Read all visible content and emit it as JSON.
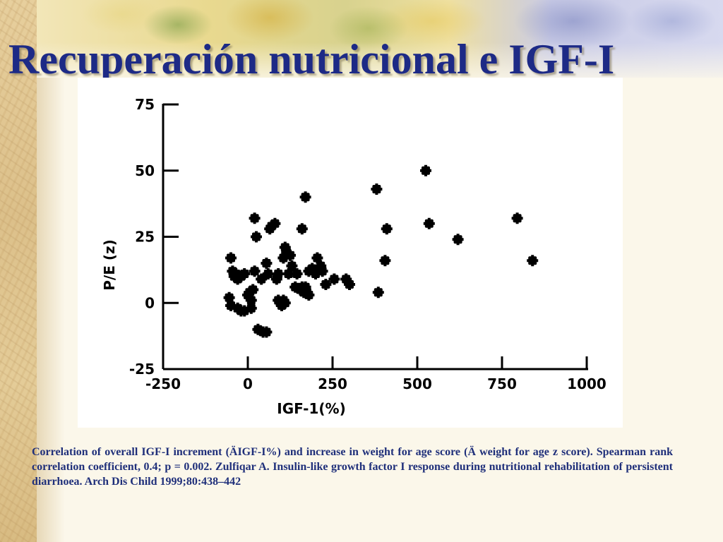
{
  "slide": {
    "title": "Recuperación nutricional e IGF-I",
    "caption": "Correlation of overall IGF-I increment (ÄIGF-I%) and increase in weight for age score (Ä weight for age z score). Spearman rank correlation coefficient, 0.4; p = 0.002. Zulfiqar A. Insulin-like growth factor I response during nutritional rehabilitation of persistent diarrhoea. Arch Dis Child 1999;80:438–442"
  },
  "chart_data": {
    "type": "scatter",
    "title": "",
    "xlabel": "IGF-1(%)",
    "ylabel": "P/E (z)",
    "xlim": [
      -250,
      1000
    ],
    "ylim": [
      -25,
      75
    ],
    "x_ticks": [
      -250,
      0,
      250,
      500,
      750,
      1000
    ],
    "x_tick_labels": [
      "-250",
      "0",
      "250",
      "500",
      "750",
      "1000"
    ],
    "y_ticks": [
      -25,
      0,
      25,
      50,
      75
    ],
    "y_tick_labels": [
      "-25",
      "0",
      "25",
      "50",
      "75"
    ],
    "grid": false,
    "series": [
      {
        "marker_color": "#000000",
        "points": [
          [
            -50,
            17
          ],
          [
            -45,
            12
          ],
          [
            -40,
            10
          ],
          [
            -35,
            11
          ],
          [
            -30,
            9
          ],
          [
            -20,
            10
          ],
          [
            -10,
            11
          ],
          [
            -55,
            2
          ],
          [
            -50,
            -1
          ],
          [
            -30,
            -2
          ],
          [
            -20,
            -3
          ],
          [
            -10,
            -3
          ],
          [
            0,
            3
          ],
          [
            5,
            4
          ],
          [
            10,
            1
          ],
          [
            10,
            -2
          ],
          [
            15,
            5
          ],
          [
            20,
            12
          ],
          [
            20,
            32
          ],
          [
            25,
            25
          ],
          [
            30,
            -10
          ],
          [
            45,
            -11
          ],
          [
            55,
            -11
          ],
          [
            40,
            9
          ],
          [
            55,
            15
          ],
          [
            60,
            11
          ],
          [
            65,
            28
          ],
          [
            70,
            29
          ],
          [
            80,
            30
          ],
          [
            85,
            9
          ],
          [
            90,
            11
          ],
          [
            90,
            1
          ],
          [
            95,
            0
          ],
          [
            100,
            -1
          ],
          [
            105,
            1
          ],
          [
            110,
            0
          ],
          [
            105,
            17
          ],
          [
            110,
            21
          ],
          [
            115,
            19
          ],
          [
            125,
            18
          ],
          [
            130,
            14
          ],
          [
            120,
            11
          ],
          [
            140,
            6
          ],
          [
            145,
            11
          ],
          [
            155,
            5
          ],
          [
            160,
            6
          ],
          [
            165,
            4
          ],
          [
            170,
            6
          ],
          [
            175,
            4
          ],
          [
            180,
            3
          ],
          [
            160,
            28
          ],
          [
            170,
            40
          ],
          [
            180,
            12
          ],
          [
            190,
            13
          ],
          [
            200,
            11
          ],
          [
            205,
            17
          ],
          [
            215,
            14
          ],
          [
            220,
            12
          ],
          [
            230,
            7
          ],
          [
            255,
            9
          ],
          [
            290,
            9
          ],
          [
            300,
            7
          ],
          [
            380,
            43
          ],
          [
            385,
            4
          ],
          [
            405,
            16
          ],
          [
            410,
            28
          ],
          [
            525,
            50
          ],
          [
            535,
            30
          ],
          [
            620,
            24
          ],
          [
            795,
            32
          ],
          [
            840,
            16
          ]
        ]
      }
    ]
  },
  "colors": {
    "title": "#1d2a86",
    "caption": "#1f2f7a",
    "chart_background": "#ffffff",
    "axis": "#000000"
  }
}
